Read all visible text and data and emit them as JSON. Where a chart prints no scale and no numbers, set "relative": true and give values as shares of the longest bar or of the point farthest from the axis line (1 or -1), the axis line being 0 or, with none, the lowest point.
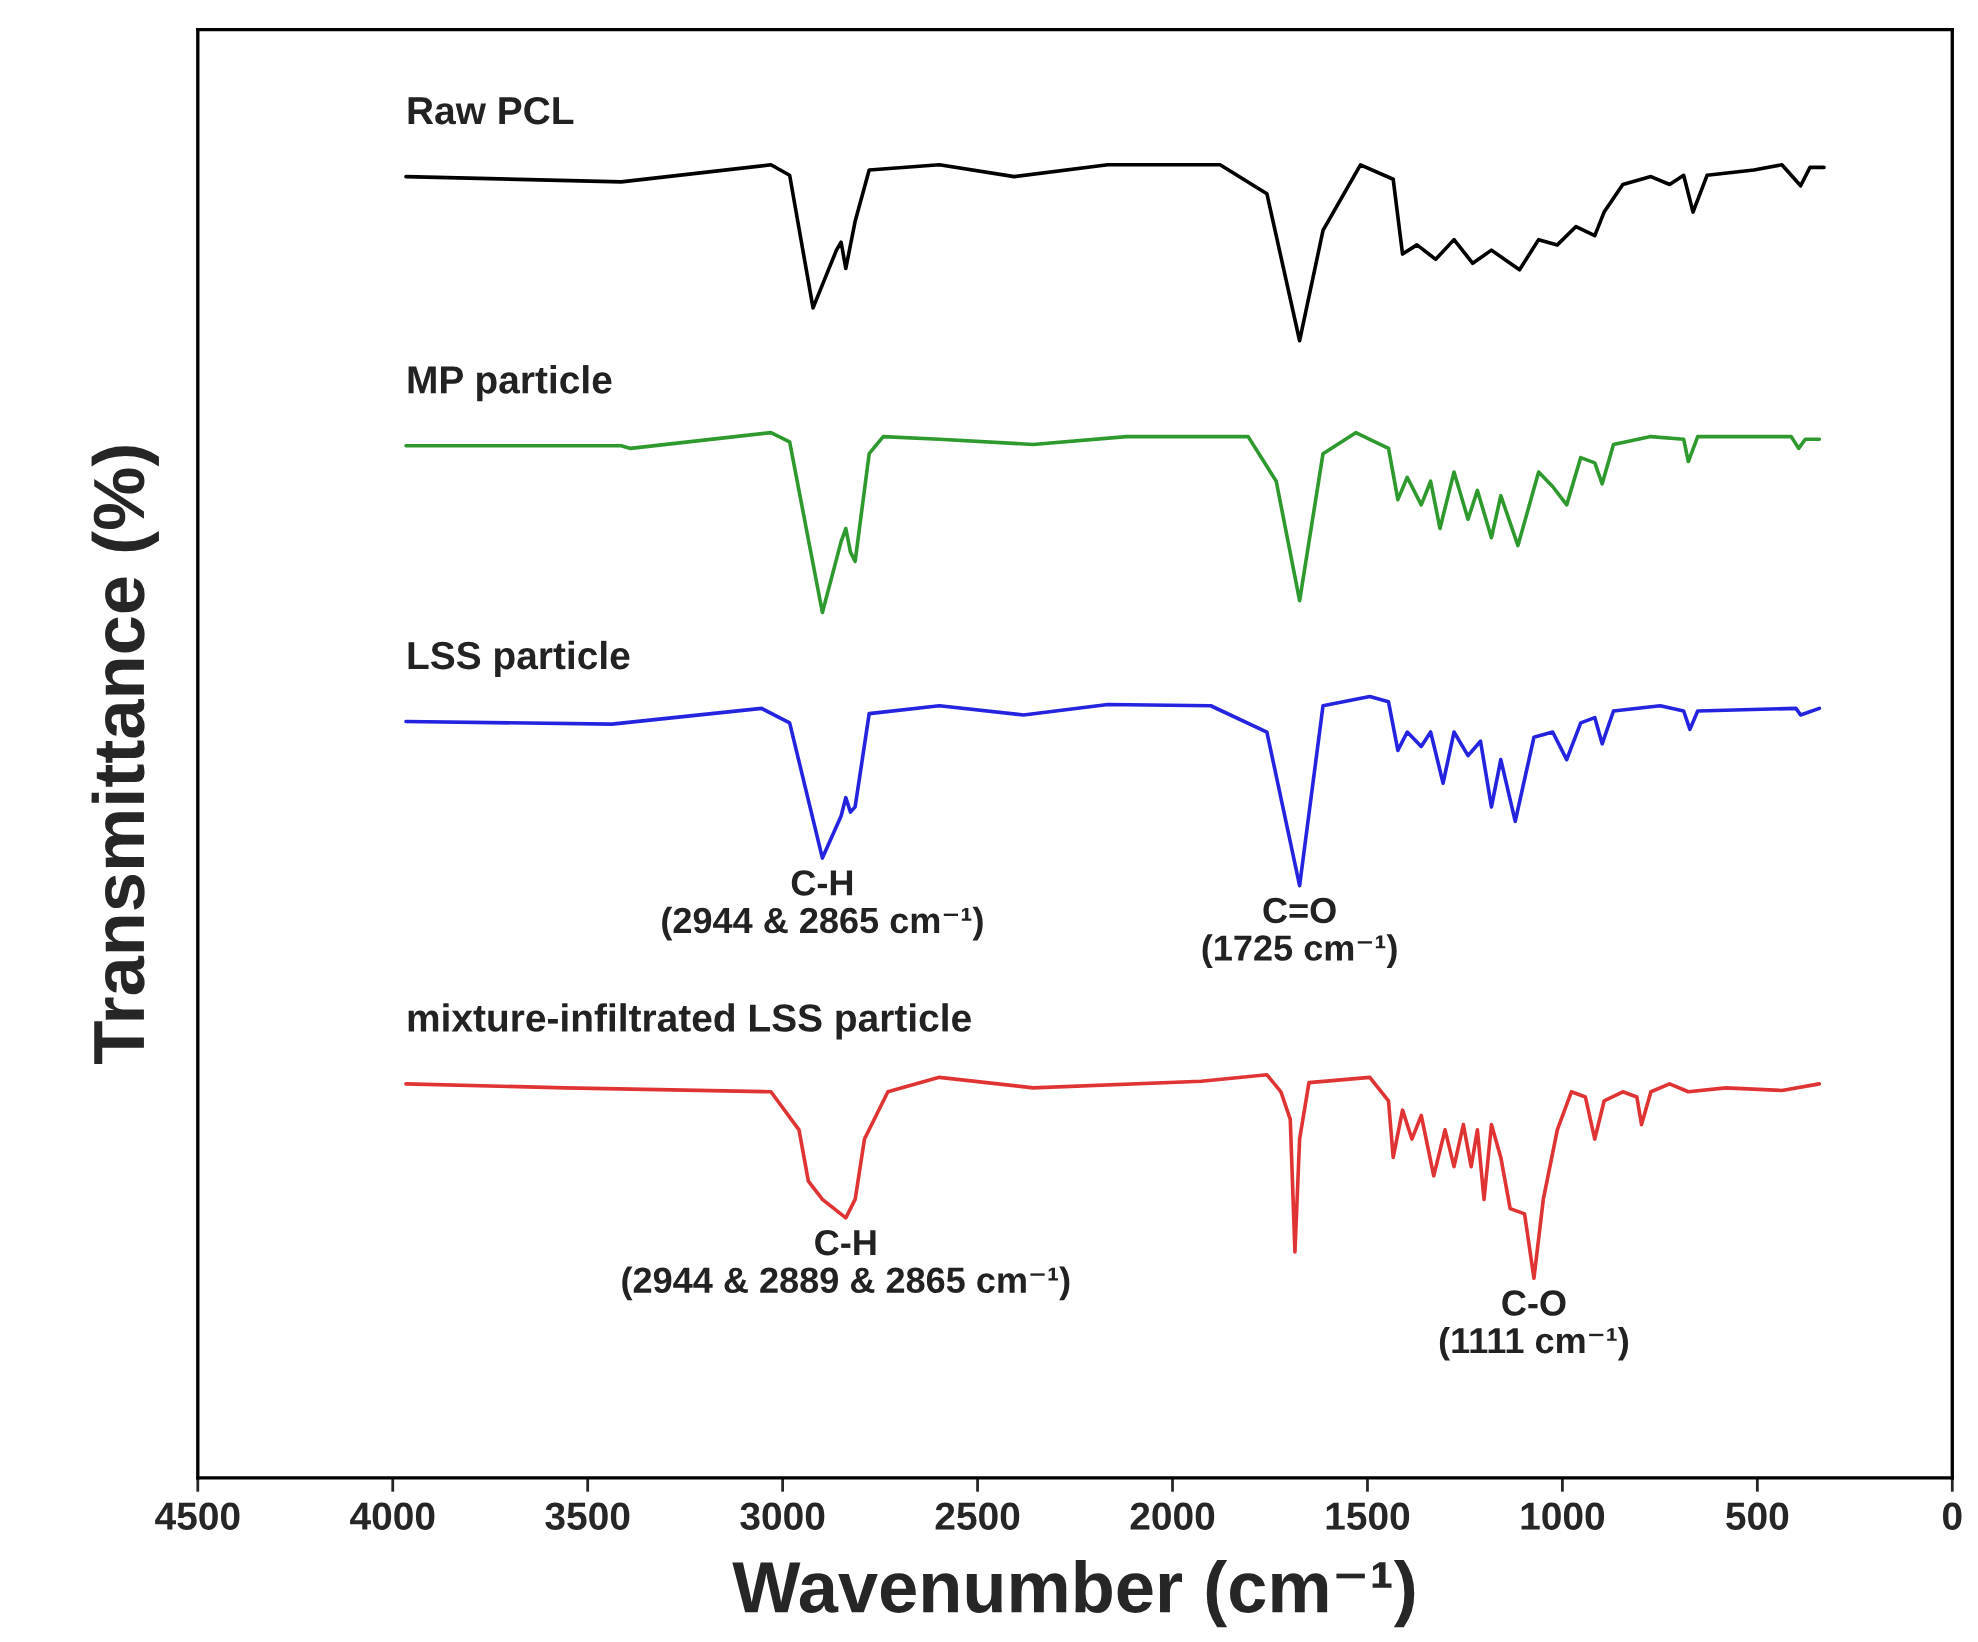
{
  "chart_data": {
    "type": "line",
    "relative": true,
    "xlabel": "Wavenumber (cm⁻¹)",
    "ylabel": "Transmittance (%)",
    "xlim": [
      4500,
      0
    ],
    "xticks": [
      4500,
      4000,
      3500,
      3000,
      2500,
      2000,
      1500,
      1000,
      500,
      0
    ],
    "series": [
      {
        "name": "Raw PCL",
        "color": "#000000",
        "x": [
          3966,
          3414,
          3030,
          2982,
          2922,
          2862,
          2850,
          2838,
          2814,
          2778,
          2598,
          2406,
          2166,
          1878,
          1758,
          1674,
          1614,
          1518,
          1434,
          1410,
          1373,
          1325,
          1278,
          1230,
          1182,
          1110,
          1061,
          1013,
          965,
          917,
          893,
          845,
          773,
          725,
          689,
          665,
          629,
          509,
          437,
          389,
          365,
          329
        ],
        "values": [
          0.991,
          0.987,
          1.0,
          0.992,
          0.891,
          0.935,
          0.941,
          0.921,
          0.957,
          0.996,
          1.0,
          0.991,
          1.0,
          1.0,
          0.978,
          0.866,
          0.95,
          1.0,
          0.989,
          0.932,
          0.939,
          0.928,
          0.943,
          0.925,
          0.935,
          0.92,
          0.943,
          0.939,
          0.953,
          0.946,
          0.964,
          0.985,
          0.991,
          0.985,
          0.992,
          0.964,
          0.992,
          0.996,
          1.0,
          0.984,
          0.998,
          0.998
        ]
      },
      {
        "name": "MP particle",
        "color": "#2e9a2e",
        "x": [
          3966,
          3414,
          3390,
          3030,
          2982,
          2898,
          2850,
          2838,
          2826,
          2814,
          2778,
          2742,
          2598,
          2358,
          2118,
          1806,
          1734,
          1674,
          1614,
          1530,
          1446,
          1422,
          1398,
          1362,
          1338,
          1314,
          1278,
          1242,
          1218,
          1182,
          1158,
          1114,
          1061,
          1025,
          989,
          953,
          917,
          898,
          869,
          773,
          689,
          677,
          653,
          413,
          394,
          377,
          341
        ],
        "values": [
          0.786,
          0.786,
          0.784,
          0.796,
          0.789,
          0.659,
          0.713,
          0.723,
          0.705,
          0.698,
          0.78,
          0.793,
          0.791,
          0.787,
          0.793,
          0.793,
          0.759,
          0.668,
          0.78,
          0.796,
          0.784,
          0.745,
          0.762,
          0.741,
          0.759,
          0.723,
          0.766,
          0.73,
          0.752,
          0.716,
          0.748,
          0.71,
          0.766,
          0.755,
          0.741,
          0.777,
          0.773,
          0.757,
          0.787,
          0.793,
          0.791,
          0.774,
          0.793,
          0.793,
          0.784,
          0.791,
          0.791
        ]
      },
      {
        "name": "LSS particle",
        "color": "#2424e0",
        "x": [
          3966,
          3438,
          3054,
          2982,
          2898,
          2850,
          2838,
          2826,
          2814,
          2778,
          2598,
          2382,
          2166,
          1902,
          1758,
          1674,
          1614,
          1494,
          1446,
          1422,
          1398,
          1362,
          1338,
          1306,
          1278,
          1242,
          1210,
          1182,
          1158,
          1121,
          1073,
          1025,
          989,
          953,
          917,
          898,
          869,
          749,
          689,
          673,
          653,
          401,
          389,
          341
        ],
        "values": [
          0.576,
          0.574,
          0.586,
          0.575,
          0.472,
          0.504,
          0.518,
          0.507,
          0.511,
          0.582,
          0.588,
          0.581,
          0.589,
          0.588,
          0.568,
          0.451,
          0.588,
          0.595,
          0.591,
          0.554,
          0.568,
          0.557,
          0.568,
          0.529,
          0.568,
          0.55,
          0.561,
          0.511,
          0.547,
          0.5,
          0.564,
          0.568,
          0.547,
          0.575,
          0.579,
          0.559,
          0.584,
          0.588,
          0.584,
          0.57,
          0.584,
          0.586,
          0.581,
          0.586
        ]
      },
      {
        "name": "mixture-infiltrated LSS particle",
        "color": "#e03333",
        "x": [
          3966,
          3558,
          3030,
          2958,
          2934,
          2898,
          2838,
          2814,
          2790,
          2730,
          2598,
          2358,
          1926,
          1758,
          1722,
          1698,
          1686,
          1674,
          1650,
          1494,
          1446,
          1434,
          1410,
          1386,
          1362,
          1330,
          1301,
          1278,
          1254,
          1234,
          1218,
          1201,
          1182,
          1158,
          1134,
          1097,
          1073,
          1049,
          1013,
          977,
          941,
          917,
          893,
          845,
          809,
          797,
          773,
          725,
          677,
          581,
          437,
          341
        ],
        "values": [
          0.3,
          0.297,
          0.294,
          0.265,
          0.226,
          0.212,
          0.198,
          0.212,
          0.258,
          0.294,
          0.305,
          0.297,
          0.302,
          0.307,
          0.294,
          0.273,
          0.172,
          0.258,
          0.301,
          0.305,
          0.287,
          0.244,
          0.28,
          0.258,
          0.276,
          0.23,
          0.265,
          0.237,
          0.269,
          0.237,
          0.265,
          0.212,
          0.269,
          0.244,
          0.205,
          0.201,
          0.152,
          0.212,
          0.265,
          0.294,
          0.29,
          0.258,
          0.287,
          0.294,
          0.29,
          0.269,
          0.294,
          0.3,
          0.294,
          0.297,
          0.295,
          0.3
        ]
      }
    ],
    "annotations": [
      {
        "text": "C-H\n(2944 & 2865 cm⁻¹)",
        "x": 2898,
        "y": 0.472
      },
      {
        "text": "C=O\n(1725 cm⁻¹)",
        "x": 1674,
        "y": 0.451
      },
      {
        "text": "C-H\n(2944 & 2889 & 2865 cm⁻¹)",
        "x": 2838,
        "y": 0.198
      },
      {
        "text": "C-O\n(1111 cm⁻¹)",
        "x": 1073,
        "y": 0.152
      }
    ]
  }
}
